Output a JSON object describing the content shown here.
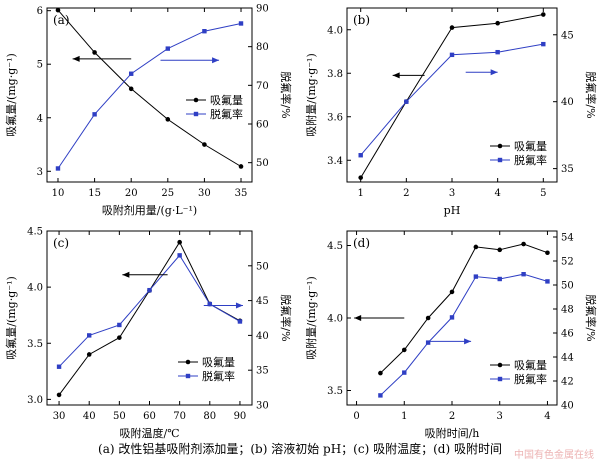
{
  "caption": "(a) 改性铝基吸附剂添加量；(b) 溶液初始 pH；(c) 吸附温度；(d) 吸附时间",
  "watermark": "中国有色金属在线",
  "colors": {
    "series1": "#000000",
    "series2": "#2f3fc4"
  },
  "chart_data": [
    {
      "type": "line",
      "panel_label": "(a)",
      "xlabel": "吸附剂用量/(g·L⁻¹)",
      "ylabel": "吸氟量/(mg·g⁻¹)",
      "y2label": "脱氟率/%",
      "xlim": [
        8.5,
        36.5
      ],
      "ylim": [
        2.8,
        6.05
      ],
      "y2lim": [
        45,
        90
      ],
      "xticks": [
        10,
        15,
        20,
        25,
        30,
        35
      ],
      "yticks": [
        3,
        4,
        5,
        6
      ],
      "y2ticks": [
        50,
        60,
        70,
        80,
        90
      ],
      "legend": [
        "吸氟量",
        "脱氟率"
      ],
      "legend_position": "right",
      "series": [
        {
          "name": "吸氟量",
          "axis": "left",
          "x": [
            10,
            15,
            20,
            25,
            30,
            35
          ],
          "y": [
            6.01,
            5.22,
            4.54,
            3.97,
            3.5,
            3.09
          ]
        },
        {
          "name": "脱氟率",
          "axis": "right",
          "x": [
            10,
            15,
            20,
            25,
            30,
            35
          ],
          "y": [
            48.5,
            62.5,
            73,
            79.5,
            84,
            86
          ]
        }
      ],
      "arrows": [
        {
          "from_x": 20,
          "to_x": 12,
          "axis": "left",
          "y": 5.1
        },
        {
          "from_x": 24,
          "to_x": 32,
          "axis": "right",
          "y": 76.5
        }
      ]
    },
    {
      "type": "line",
      "panel_label": "(b)",
      "xlabel": "pH",
      "ylabel": "吸附量/(mg·g⁻¹)",
      "y2label": "脱氟率/%",
      "xlim": [
        0.7,
        5.3
      ],
      "ylim": [
        3.3,
        4.1
      ],
      "y2lim": [
        34,
        47
      ],
      "xticks": [
        1,
        2,
        3,
        4,
        5
      ],
      "yticks": [
        3.4,
        3.6,
        3.8,
        4.0
      ],
      "y2ticks": [
        35,
        40,
        45
      ],
      "legend": [
        "吸氟量",
        "脱氟率"
      ],
      "legend_position": "lower-right",
      "series": [
        {
          "name": "吸氟量",
          "axis": "left",
          "x": [
            1,
            2,
            3,
            4,
            5
          ],
          "y": [
            3.32,
            3.67,
            4.01,
            4.03,
            4.07
          ]
        },
        {
          "name": "脱氟率",
          "axis": "right",
          "x": [
            1,
            2,
            3,
            4,
            5
          ],
          "y": [
            36,
            40,
            43.5,
            43.7,
            44.3
          ]
        }
      ],
      "arrows": [
        {
          "from_x": 2.4,
          "to_x": 1.7,
          "axis": "left",
          "y": 3.79
        },
        {
          "from_x": 3.3,
          "to_x": 4.0,
          "axis": "right",
          "y": 42.2
        }
      ]
    },
    {
      "type": "line",
      "panel_label": "(c)",
      "xlabel": "吸附温度/℃",
      "ylabel": "吸氟量/(mg·g⁻¹)",
      "y2label": "脱氟率/%",
      "xlim": [
        26,
        94
      ],
      "ylim": [
        2.95,
        4.5
      ],
      "y2lim": [
        30,
        55
      ],
      "xticks": [
        30,
        40,
        50,
        60,
        70,
        80,
        90
      ],
      "yticks": [
        3.0,
        3.5,
        4.0,
        4.5
      ],
      "y2ticks": [
        30,
        35,
        40,
        45,
        50
      ],
      "legend": [
        "吸氟量",
        "脱氟率"
      ],
      "legend_position": "lower-right",
      "series": [
        {
          "name": "吸氟量",
          "axis": "left",
          "x": [
            30,
            40,
            50,
            60,
            70,
            80,
            90
          ],
          "y": [
            3.04,
            3.4,
            3.55,
            3.97,
            4.4,
            3.85,
            3.7
          ]
        },
        {
          "name": "脱氟率",
          "axis": "right",
          "x": [
            30,
            40,
            50,
            60,
            70,
            80,
            90
          ],
          "y": [
            35.5,
            40,
            41.5,
            46.5,
            51.5,
            44.5,
            42
          ]
        }
      ],
      "arrows": [
        {
          "from_x": 66,
          "to_x": 51,
          "axis": "left",
          "y": 4.11
        },
        {
          "from_x": 78,
          "to_x": 91,
          "axis": "right",
          "y": 44.3
        }
      ]
    },
    {
      "type": "line",
      "panel_label": "(d)",
      "xlabel": "吸附时间/h",
      "ylabel": "吸附量/(mg·g⁻¹)",
      "y2label": "脱氟率/%",
      "xlim": [
        -0.2,
        4.2
      ],
      "ylim": [
        3.4,
        4.6
      ],
      "y2lim": [
        40,
        54.5
      ],
      "xticks": [
        0,
        1,
        2,
        3,
        4
      ],
      "yticks": [
        3.5,
        4.0,
        4.5
      ],
      "y2ticks": [
        40,
        42,
        44,
        46,
        48,
        50,
        52,
        54
      ],
      "legend": [
        "吸氟量",
        "脱氟率"
      ],
      "legend_position": "lower-right",
      "series": [
        {
          "name": "吸氟量",
          "axis": "left",
          "x": [
            0.5,
            1,
            1.5,
            2,
            2.5,
            3,
            3.5,
            4
          ],
          "y": [
            3.62,
            3.78,
            4.0,
            4.18,
            4.49,
            4.47,
            4.51,
            4.45
          ]
        },
        {
          "name": "脱氟率",
          "axis": "right",
          "x": [
            0.5,
            1,
            1.5,
            2,
            2.5,
            3,
            3.5,
            4
          ],
          "y": [
            40.8,
            42.7,
            45.2,
            47.3,
            50.7,
            50.5,
            50.9,
            50.3
          ]
        }
      ],
      "arrows": [
        {
          "from_x": 1.0,
          "to_x": -0.05,
          "axis": "left",
          "y": 4.0
        },
        {
          "from_x": 1.5,
          "to_x": 2.4,
          "axis": "right",
          "y": 45.3
        }
      ]
    }
  ]
}
